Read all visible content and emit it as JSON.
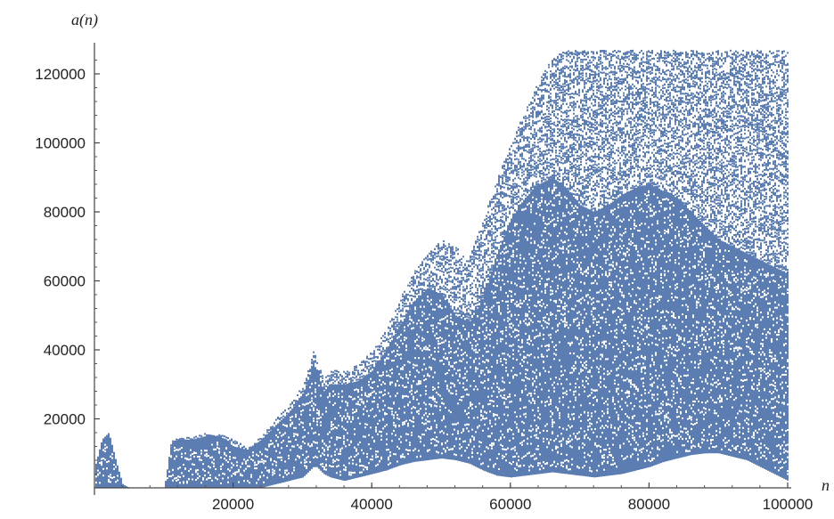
{
  "chart_data": {
    "type": "scatter",
    "xlabel": "n",
    "ylabel": "a(n)",
    "xlim": [
      0,
      100000
    ],
    "ylim": [
      0,
      128000
    ],
    "x_ticks": [
      20000,
      40000,
      60000,
      80000,
      100000
    ],
    "x_tick_labels": [
      "20000",
      "40000",
      "60000",
      "80000",
      "100000"
    ],
    "y_ticks": [
      20000,
      40000,
      60000,
      80000,
      100000,
      120000
    ],
    "y_tick_labels": [
      "20000",
      "40000",
      "60000",
      "80000",
      "100000",
      "120000"
    ],
    "grid": false,
    "color": "#5b7db1",
    "envelope": {
      "x": [
        0,
        1000,
        2000,
        3000,
        4000,
        5000,
        8000,
        10000,
        11000,
        12000,
        14000,
        16000,
        18000,
        20000,
        22000,
        24000,
        26000,
        28000,
        30000,
        31500,
        32000,
        33000,
        34000,
        36000,
        38000,
        40000,
        42000,
        44000,
        46000,
        48000,
        50000,
        52000,
        54000,
        56000,
        58000,
        60000,
        62000,
        64000,
        66000,
        68000,
        70000,
        72000,
        74000,
        76000,
        78000,
        80000,
        82000,
        84000,
        86000,
        88000,
        90000,
        92000,
        94000,
        96000,
        98000,
        100000
      ],
      "upper": [
        6000,
        14000,
        16000,
        8000,
        1000,
        0,
        0,
        0,
        14000,
        15000,
        15000,
        16000,
        16000,
        14000,
        12000,
        15000,
        20000,
        24000,
        30000,
        40000,
        37000,
        32000,
        35000,
        34000,
        36000,
        40000,
        46000,
        55000,
        63000,
        68000,
        72000,
        70000,
        67000,
        78000,
        90000,
        100000,
        110000,
        118000,
        125000,
        127000,
        127000,
        127000,
        127000,
        127000,
        127000,
        127000,
        127000,
        127000,
        127000,
        127000,
        127000,
        127000,
        127000,
        127000,
        127000,
        127000
      ],
      "lower": [
        0,
        0,
        0,
        0,
        0,
        0,
        0,
        0,
        0,
        0,
        0,
        0,
        0,
        0,
        0,
        0,
        1000,
        2000,
        3000,
        6000,
        6000,
        4000,
        3000,
        2000,
        3000,
        4000,
        5000,
        6500,
        7500,
        8000,
        8500,
        8000,
        7000,
        5000,
        3500,
        3000,
        3500,
        4000,
        4500,
        4000,
        3500,
        3000,
        3500,
        4000,
        5000,
        6000,
        7500,
        8500,
        9500,
        10000,
        10000,
        9000,
        8000,
        6000,
        4000,
        2000
      ],
      "dense_upper": [
        6000,
        14000,
        16000,
        8000,
        1000,
        0,
        0,
        0,
        13000,
        14000,
        14000,
        15000,
        15000,
        12000,
        11000,
        14000,
        18000,
        22000,
        27000,
        36000,
        34000,
        28000,
        30000,
        30000,
        31000,
        34000,
        40000,
        47000,
        54000,
        58000,
        56000,
        50000,
        48000,
        55000,
        68000,
        78000,
        84000,
        88000,
        90000,
        87000,
        82000,
        80000,
        82000,
        85000,
        87000,
        88000,
        86000,
        84000,
        80000,
        76000,
        72000,
        70000,
        68000,
        66000,
        64000,
        62000
      ]
    }
  }
}
